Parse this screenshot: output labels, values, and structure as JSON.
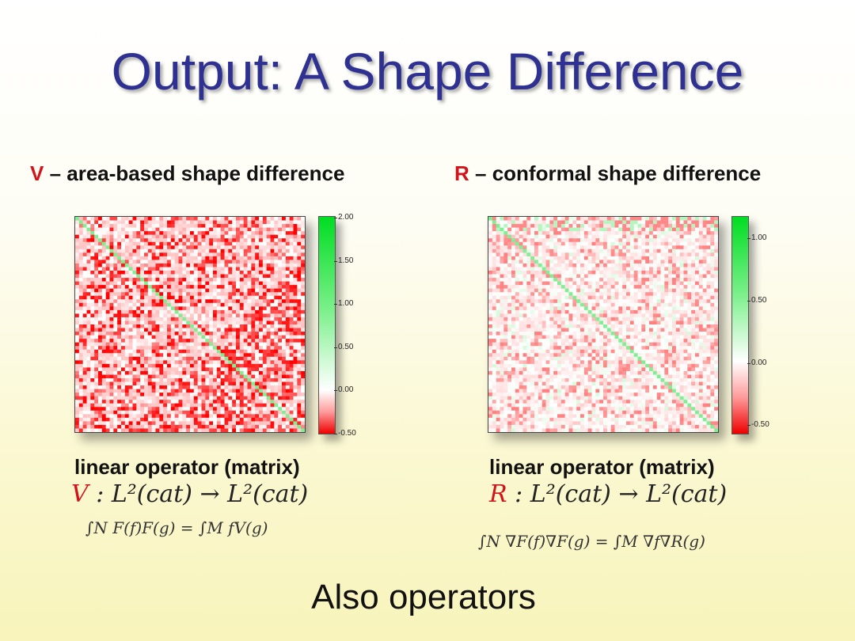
{
  "slide": {
    "title": "Output: A Shape Difference",
    "footer": "Also operators"
  },
  "left": {
    "letter": "V",
    "subtitle": " – area-based shape difference",
    "operator_label": "linear operator (matrix)",
    "equation_symbol": "V",
    "equation_rest": " : L²(cat) → L²(cat)",
    "formula": "∫N F(f)F(g) = ∫M fV(g)",
    "colorbar_ticks": [
      "2.00",
      "1.50",
      "1.00",
      "0.50",
      "0.00",
      "-0.50"
    ]
  },
  "right": {
    "letter": "R",
    "subtitle": " – conformal shape difference",
    "operator_label": "linear operator (matrix)",
    "equation_symbol": "R",
    "equation_rest": " : L²(cat) → L²(cat)",
    "formula": "∫N ∇F(f)∇F(g) = ∫M ∇f∇R(g)",
    "colorbar_ticks": [
      "1.00",
      "0.50",
      "0.00",
      "-0.50"
    ]
  },
  "chart_data": [
    {
      "type": "heatmap",
      "title": "",
      "matrix_size": 60,
      "diagonal_value": 1.0,
      "off_diagonal_value_range": [
        -0.5,
        0.1
      ],
      "colorbar_range": [
        -0.5,
        2.0
      ],
      "colorbar_ticks": [
        2.0,
        1.5,
        1.0,
        0.5,
        0.0,
        -0.5
      ],
      "colors": {
        "negative": "#ff0000",
        "zero": "#ffffff",
        "positive": "#00dd22"
      }
    },
    {
      "type": "heatmap",
      "title": "",
      "matrix_size": 60,
      "diagonal_value": 0.6,
      "off_diagonal_value_range": [
        -0.3,
        0.2
      ],
      "colorbar_range": [
        -0.6,
        1.2
      ],
      "colorbar_ticks": [
        1.0,
        0.5,
        0.0,
        -0.5
      ],
      "colors": {
        "negative": "#ff0000",
        "zero": "#ffffff",
        "positive": "#00dd22"
      }
    }
  ]
}
